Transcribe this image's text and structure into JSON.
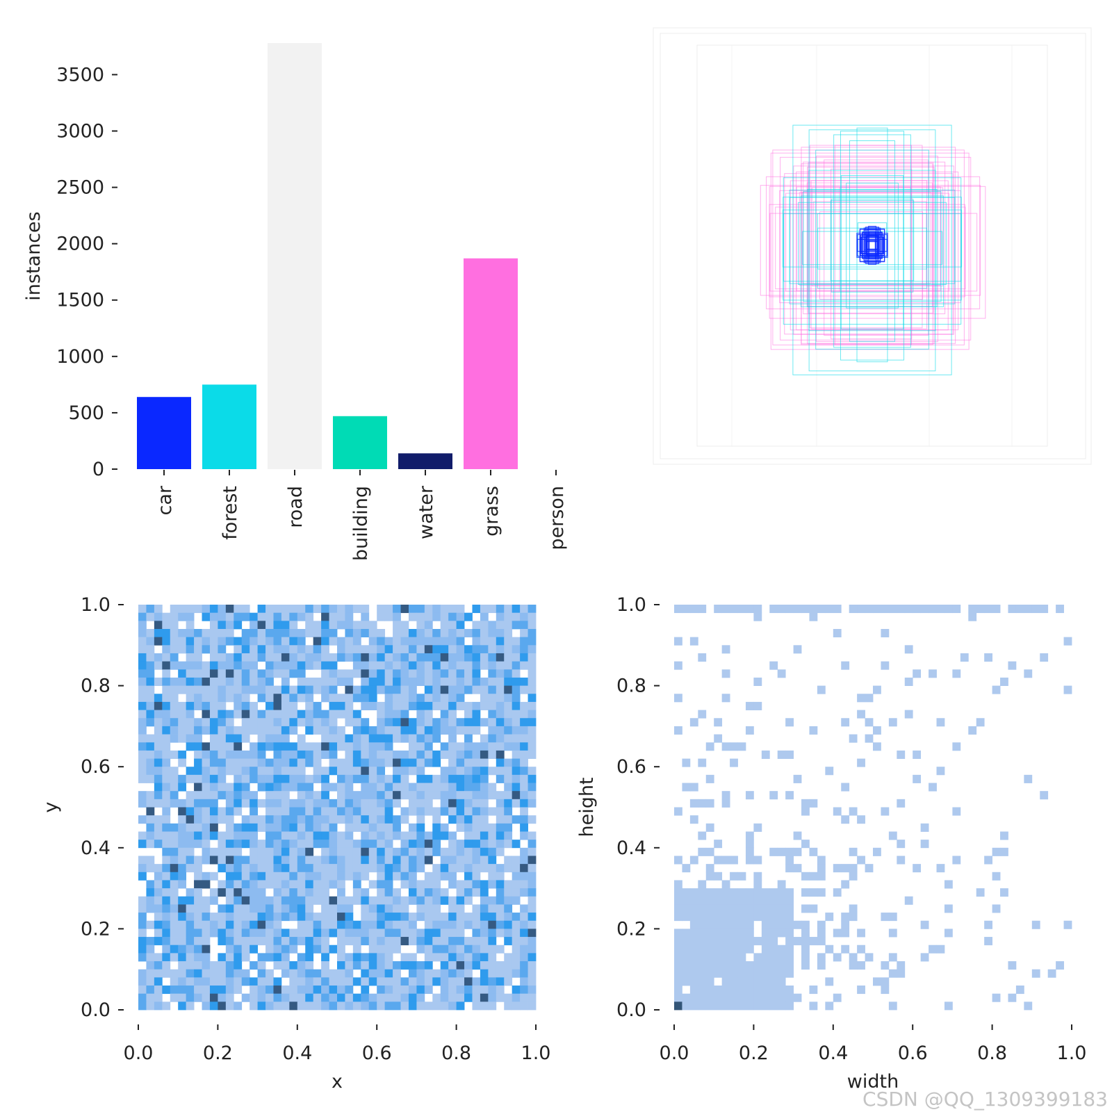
{
  "chart_data": [
    {
      "type": "bar",
      "categories": [
        "car",
        "forest",
        "road",
        "building",
        "water",
        "grass",
        "person"
      ],
      "values": [
        640,
        750,
        3780,
        470,
        140,
        1870,
        0
      ],
      "colors": [
        "#0a28ff",
        "#0bdbe8",
        "#f2f2f2",
        "#00dbb5",
        "#111c6a",
        "#ff6fe0",
        "#ffffff"
      ],
      "ylabel": "instances",
      "ylim": [
        0,
        3780
      ],
      "yticks": [
        0,
        500,
        1000,
        1500,
        2000,
        2500,
        3000,
        3500
      ],
      "grid": false
    },
    {
      "type": "overlay",
      "description_key": "labels",
      "note_colors": [
        "#0a28ff",
        "#0bdbe8",
        "#f2f2f2",
        "#ff6fe0"
      ]
    },
    {
      "type": "heatmap",
      "xlabel": "x",
      "ylabel": "y",
      "xlim": [
        0,
        1
      ],
      "ylim": [
        0,
        1
      ],
      "xticks": [
        "0.0",
        "0.2",
        "0.4",
        "0.6",
        "0.8",
        "1.0"
      ],
      "yticks": [
        "0.0",
        "0.2",
        "0.4",
        "0.6",
        "0.8",
        "1.0"
      ],
      "bins": 50,
      "palette": [
        "#a9c8f0",
        "#8dbbf0",
        "#5aa8ee",
        "#2f9bed",
        "#355a82"
      ]
    },
    {
      "type": "heatmap",
      "xlabel": "width",
      "ylabel": "height",
      "xlim": [
        0,
        1
      ],
      "ylim": [
        0,
        1
      ],
      "xticks": [
        "0.0",
        "0.2",
        "0.4",
        "0.6",
        "0.8",
        "1.0"
      ],
      "yticks": [
        "0.0",
        "0.2",
        "0.4",
        "0.6",
        "0.8",
        "1.0"
      ],
      "bins": 50,
      "palette": [
        "#aec9ee"
      ],
      "dense_cell_color": "#335577"
    }
  ],
  "watermark": "CSDN @QQ_1309399183"
}
